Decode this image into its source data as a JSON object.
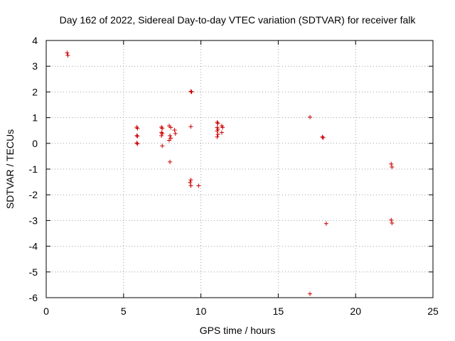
{
  "chart_data": {
    "type": "scatter",
    "title": "Day 162 of 2022, Sidereal Day-to-day VTEC variation (SDTVAR) for receiver falk",
    "xlabel": "GPS time / hours",
    "ylabel": "SDTVAR / TECUs",
    "xlim": [
      0,
      25
    ],
    "ylim": [
      -6,
      4
    ],
    "x_ticks": [
      0,
      5,
      10,
      15,
      20,
      25
    ],
    "y_ticks": [
      -6,
      -5,
      -4,
      -3,
      -2,
      -1,
      0,
      1,
      2,
      3,
      4
    ],
    "x_tick_labels": [
      "0",
      "5",
      "10",
      "15",
      "20",
      "25"
    ],
    "y_tick_labels": [
      "-6",
      "-5",
      "-4",
      "-3",
      "-2",
      "-1",
      "0",
      "1",
      "2",
      "3",
      "4"
    ],
    "grid": true,
    "marker": "plus",
    "color": "#cc0000",
    "series": [
      {
        "name": "SDTVAR",
        "points": [
          [
            1.35,
            3.52
          ],
          [
            1.4,
            3.42
          ],
          [
            5.85,
            0.63
          ],
          [
            5.9,
            0.58
          ],
          [
            5.85,
            0.3
          ],
          [
            5.9,
            0.28
          ],
          [
            5.85,
            0.02
          ],
          [
            5.9,
            -0.02
          ],
          [
            7.45,
            0.63
          ],
          [
            7.5,
            0.58
          ],
          [
            7.45,
            0.42
          ],
          [
            7.5,
            0.38
          ],
          [
            7.45,
            0.3
          ],
          [
            7.5,
            -0.1
          ],
          [
            7.95,
            0.68
          ],
          [
            8.05,
            0.62
          ],
          [
            8.0,
            0.3
          ],
          [
            8.05,
            0.2
          ],
          [
            7.95,
            0.12
          ],
          [
            8.3,
            0.52
          ],
          [
            8.35,
            0.38
          ],
          [
            8.0,
            -0.72
          ],
          [
            9.35,
            2.02
          ],
          [
            9.4,
            2.0
          ],
          [
            9.35,
            0.65
          ],
          [
            9.35,
            -1.42
          ],
          [
            9.3,
            -1.52
          ],
          [
            9.35,
            -1.65
          ],
          [
            9.85,
            -1.65
          ],
          [
            11.05,
            0.82
          ],
          [
            11.1,
            0.78
          ],
          [
            11.05,
            0.62
          ],
          [
            11.1,
            0.55
          ],
          [
            11.05,
            0.48
          ],
          [
            11.1,
            0.35
          ],
          [
            11.05,
            0.25
          ],
          [
            11.35,
            0.68
          ],
          [
            11.4,
            0.62
          ],
          [
            11.35,
            0.42
          ],
          [
            17.05,
            1.02
          ],
          [
            17.85,
            0.25
          ],
          [
            17.9,
            0.22
          ],
          [
            18.1,
            -3.12
          ],
          [
            17.05,
            -5.85
          ],
          [
            22.3,
            -0.8
          ],
          [
            22.35,
            -0.92
          ],
          [
            22.3,
            -2.98
          ],
          [
            22.35,
            -3.1
          ]
        ]
      }
    ]
  }
}
